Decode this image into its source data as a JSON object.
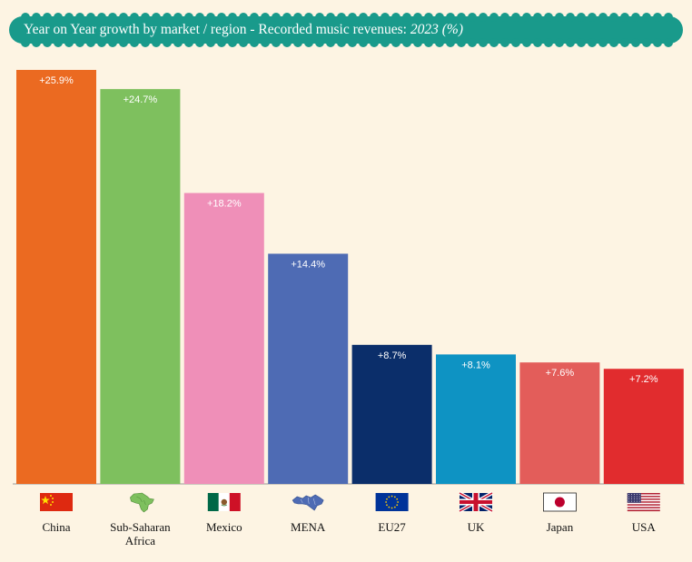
{
  "title": {
    "text": "Year on Year growth by market / region - Recorded music revenues:",
    "year_text": "2023 (%)",
    "banner_color": "#199a8b"
  },
  "chart_data": {
    "type": "bar",
    "title": "Year on Year growth by market / region - Recorded music revenues: 2023 (%)",
    "categories": [
      "China",
      "Sub-Saharan Africa",
      "Mexico",
      "MENA",
      "EU27",
      "UK",
      "Japan",
      "USA"
    ],
    "values": [
      25.9,
      24.7,
      18.2,
      14.4,
      8.7,
      8.1,
      7.6,
      7.2
    ],
    "data_labels": [
      "+25.9%",
      "+24.7%",
      "+18.2%",
      "+14.4%",
      "+8.7%",
      "+8.1%",
      "+7.6%",
      "+7.2%"
    ],
    "colors": [
      "#eb6a21",
      "#7ec05e",
      "#ef8fb8",
      "#4e6bb4",
      "#0b2e6a",
      "#0e93c3",
      "#e35d5a",
      "#e12c2e"
    ],
    "icons": [
      "china-flag-icon",
      "africa-map-icon",
      "mexico-flag-icon",
      "mena-map-icon",
      "eu-flag-icon",
      "uk-flag-icon",
      "japan-flag-icon",
      "usa-flag-icon"
    ],
    "ylim": [
      0,
      26
    ],
    "grid": false,
    "legend": "none"
  }
}
